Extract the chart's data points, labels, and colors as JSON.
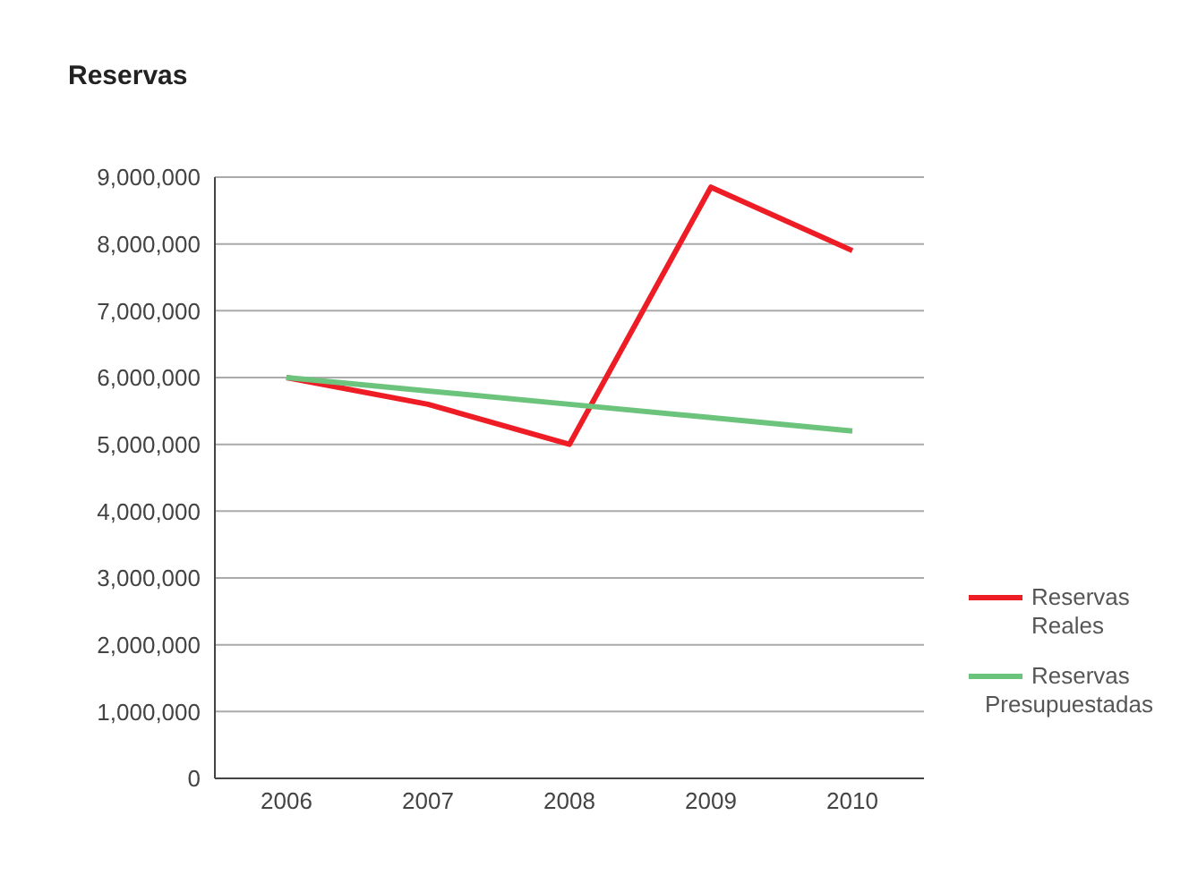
{
  "chart_data": {
    "type": "line",
    "title": "Reservas",
    "categories": [
      "2006",
      "2007",
      "2008",
      "2009",
      "2010"
    ],
    "series": [
      {
        "name": "Reservas Reales",
        "color": "#ee1c25",
        "values": [
          6000000,
          5600000,
          5000000,
          8850000,
          7900000
        ]
      },
      {
        "name": "Reservas Presupuestadas",
        "color": "#6cc47c",
        "values": [
          6000000,
          5800000,
          5600000,
          5400000,
          5200000
        ]
      }
    ],
    "ylim": [
      0,
      9000000
    ],
    "yticks": [
      0,
      {
        "value": 1000000,
        "label": "1,000,000"
      },
      {
        "value": 2000000,
        "label": "2,000,000"
      },
      {
        "value": 3000000,
        "label": "3,000,000"
      },
      {
        "value": 4000000,
        "label": "4,000,000"
      },
      {
        "value": 5000000,
        "label": "5,000,000"
      },
      {
        "value": 6000000,
        "label": "6,000,000"
      },
      {
        "value": 7000000,
        "label": "7,000,000"
      },
      {
        "value": 8000000,
        "label": "8,000,000"
      },
      {
        "value": 9000000,
        "label": "9,000,000"
      }
    ],
    "grid": "y",
    "legend": "bottom right",
    "marker": "none",
    "line_style": "solid"
  }
}
